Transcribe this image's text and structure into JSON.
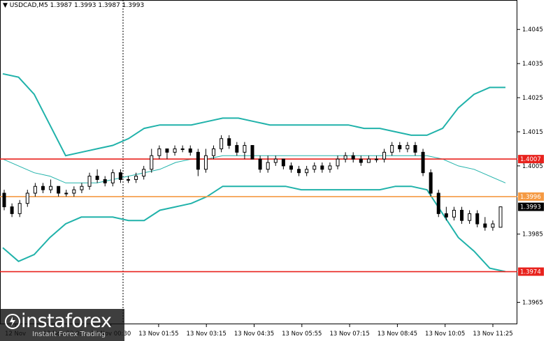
{
  "header": {
    "symbol": "USDCAD,M5",
    "quote": "1.3987 1.3993 1.3987 1.3993"
  },
  "colors": {
    "background": "#ffffff",
    "candle": "#000000",
    "band": "#20b2aa",
    "level_red": "#e8221d",
    "level_orange": "#f59a43",
    "current_price_box": "#000000"
  },
  "chart_data": {
    "type": "candlestick",
    "title": "",
    "symbol": "USDCAD",
    "timeframe": "M5",
    "ylim": [
      1.396,
      1.4052
    ],
    "y_ticks": [
      "1.4045",
      "1.4035",
      "1.4025",
      "1.4015",
      "1.4005",
      "1.3985",
      "1.3965"
    ],
    "x_ticks": [
      "12 Nov",
      "12 Nov 23:05",
      "13 Nov 00:30",
      "13 Nov 01:55",
      "13 Nov 03:15",
      "13 Nov 04:35",
      "13 Nov 05:55",
      "13 Nov 07:15",
      "13 Nov 08:45",
      "13 Nov 10:05",
      "13 Nov 11:25"
    ],
    "levels": [
      {
        "label": "1.4007",
        "value": 1.4007,
        "color": "#e8221d"
      },
      {
        "label": "1.3996",
        "value": 1.3996,
        "color": "#f59a43"
      },
      {
        "label": "1.3974",
        "value": 1.3974,
        "color": "#e8221d"
      }
    ],
    "current_price": {
      "label": "1.3993",
      "value": 1.3993
    },
    "bollinger_upper": [
      1.4032,
      1.4031,
      1.4026,
      1.4017,
      1.4008,
      1.4009,
      1.401,
      1.4011,
      1.4013,
      1.4016,
      1.4017,
      1.4017,
      1.4017,
      1.4018,
      1.4019,
      1.4019,
      1.4018,
      1.4017,
      1.4017,
      1.4017,
      1.4017,
      1.4017,
      1.4017,
      1.4016,
      1.4016,
      1.4015,
      1.4014,
      1.4014,
      1.4016,
      1.4022,
      1.4026,
      1.4028,
      1.4028
    ],
    "bollinger_mid": [
      1.4007,
      1.4005,
      1.4003,
      1.4002,
      1.4,
      1.4,
      1.4,
      1.4001,
      1.4002,
      1.4003,
      1.4004,
      1.4006,
      1.4007,
      1.4007,
      1.4008,
      1.4008,
      1.4008,
      1.4008,
      1.4008,
      1.4008,
      1.4008,
      1.4008,
      1.4008,
      1.4008,
      1.4008,
      1.4008,
      1.4008,
      1.4008,
      1.4007,
      1.4005,
      1.4004,
      1.4002,
      1.4
    ],
    "bollinger_lower": [
      1.3981,
      1.3977,
      1.3979,
      1.3984,
      1.3988,
      1.399,
      1.399,
      1.399,
      1.3989,
      1.3989,
      1.3992,
      1.3993,
      1.3994,
      1.3996,
      1.3999,
      1.3999,
      1.3999,
      1.3999,
      1.3999,
      1.3998,
      1.3998,
      1.3998,
      1.3998,
      1.3998,
      1.3998,
      1.3999,
      1.3999,
      1.3998,
      1.3991,
      1.3984,
      1.398,
      1.3975,
      1.3974
    ],
    "candles": [
      [
        1.3997,
        1.3998,
        1.3992,
        1.3993
      ],
      [
        1.3993,
        1.3994,
        1.399,
        1.3991
      ],
      [
        1.3991,
        1.3995,
        1.399,
        1.3994
      ],
      [
        1.3994,
        1.3998,
        1.3993,
        1.3997
      ],
      [
        1.3997,
        1.4,
        1.3996,
        1.3999
      ],
      [
        1.3999,
        1.4,
        1.3997,
        1.3998
      ],
      [
        1.3998,
        1.4001,
        1.3997,
        1.3999
      ],
      [
        1.3999,
        1.3999,
        1.3996,
        1.3997
      ],
      [
        1.3997,
        1.3998,
        1.3996,
        1.3997
      ],
      [
        1.3997,
        1.3999,
        1.3996,
        1.3998
      ],
      [
        1.3998,
        1.4,
        1.3997,
        1.3999
      ],
      [
        1.3999,
        1.4003,
        1.3998,
        1.4002
      ],
      [
        1.4002,
        1.4004,
        1.4,
        1.4001
      ],
      [
        1.4001,
        1.4002,
        1.3999,
        1.4
      ],
      [
        1.4,
        1.4004,
        1.3999,
        1.4003
      ],
      [
        1.4003,
        1.4004,
        1.4,
        1.4001
      ],
      [
        1.4001,
        1.4002,
        1.4,
        1.4001
      ],
      [
        1.4001,
        1.4003,
        1.4,
        1.4002
      ],
      [
        1.4002,
        1.4005,
        1.4001,
        1.4004
      ],
      [
        1.4004,
        1.401,
        1.4003,
        1.4008
      ],
      [
        1.4008,
        1.4011,
        1.4007,
        1.401
      ],
      [
        1.401,
        1.401,
        1.4007,
        1.4009
      ],
      [
        1.4009,
        1.4011,
        1.4008,
        1.401
      ],
      [
        1.401,
        1.4011,
        1.4009,
        1.401
      ],
      [
        1.401,
        1.4011,
        1.4008,
        1.4009
      ],
      [
        1.4009,
        1.401,
        1.4002,
        1.4004
      ],
      [
        1.4004,
        1.401,
        1.4003,
        1.4008
      ],
      [
        1.4008,
        1.4011,
        1.4007,
        1.401
      ],
      [
        1.401,
        1.4014,
        1.4009,
        1.4013
      ],
      [
        1.4013,
        1.4014,
        1.401,
        1.4011
      ],
      [
        1.4011,
        1.4012,
        1.4008,
        1.4009
      ],
      [
        1.4009,
        1.4012,
        1.4007,
        1.4011
      ],
      [
        1.4011,
        1.4011,
        1.4007,
        1.4007
      ],
      [
        1.4007,
        1.4008,
        1.4003,
        1.4004
      ],
      [
        1.4004,
        1.4008,
        1.4003,
        1.4006
      ],
      [
        1.4006,
        1.4008,
        1.4005,
        1.4007
      ],
      [
        1.4007,
        1.4007,
        1.4004,
        1.4005
      ],
      [
        1.4005,
        1.4006,
        1.4003,
        1.4004
      ],
      [
        1.4004,
        1.4005,
        1.4002,
        1.4003
      ],
      [
        1.4003,
        1.4005,
        1.4002,
        1.4004
      ],
      [
        1.4004,
        1.4006,
        1.4003,
        1.4005
      ],
      [
        1.4005,
        1.4006,
        1.4003,
        1.4004
      ],
      [
        1.4004,
        1.4006,
        1.4003,
        1.4005
      ],
      [
        1.4005,
        1.4008,
        1.4004,
        1.4007
      ],
      [
        1.4007,
        1.4009,
        1.4006,
        1.4008
      ],
      [
        1.4008,
        1.4009,
        1.4006,
        1.4007
      ],
      [
        1.4007,
        1.4008,
        1.4005,
        1.4006
      ],
      [
        1.4006,
        1.4008,
        1.4006,
        1.4007
      ],
      [
        1.4007,
        1.4008,
        1.4006,
        1.4007
      ],
      [
        1.4007,
        1.401,
        1.4006,
        1.4009
      ],
      [
        1.4009,
        1.4012,
        1.4008,
        1.4011
      ],
      [
        1.4011,
        1.4012,
        1.4009,
        1.401
      ],
      [
        1.401,
        1.4012,
        1.4009,
        1.4011
      ],
      [
        1.4011,
        1.4012,
        1.4008,
        1.4009
      ],
      [
        1.4009,
        1.401,
        1.4002,
        1.4003
      ],
      [
        1.4003,
        1.4004,
        1.3996,
        1.3997
      ],
      [
        1.3997,
        1.3998,
        1.399,
        1.3991
      ],
      [
        1.3991,
        1.3993,
        1.3989,
        1.399
      ],
      [
        1.399,
        1.3993,
        1.3989,
        1.3992
      ],
      [
        1.3992,
        1.3993,
        1.3988,
        1.3989
      ],
      [
        1.3989,
        1.3992,
        1.3988,
        1.3991
      ],
      [
        1.3991,
        1.3992,
        1.3987,
        1.3988
      ],
      [
        1.3988,
        1.399,
        1.3986,
        1.3987
      ],
      [
        1.3987,
        1.3989,
        1.3986,
        1.3988
      ],
      [
        1.3987,
        1.3993,
        1.3987,
        1.3993
      ]
    ]
  },
  "watermark": {
    "brand": "instaforex",
    "tagline": "Instant Forex Trading"
  }
}
